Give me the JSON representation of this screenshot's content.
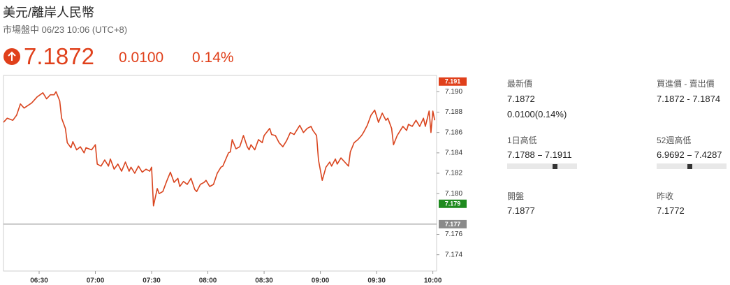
{
  "header": {
    "title": "美元/離岸人民幣",
    "status": "市場盤中 06/23 10:06 (UTC+8)",
    "price": "7.1872",
    "change": "0.0100",
    "change_pct": "0.14%"
  },
  "chart_data": {
    "type": "line",
    "color": "#d9441e",
    "x": [
      "06:11",
      "06:13",
      "06:16",
      "06:18",
      "06:20",
      "06:22",
      "06:26",
      "06:29",
      "06:32",
      "06:34",
      "06:36",
      "06:38",
      "06:39",
      "06:41",
      "06:42",
      "06:44",
      "06:45",
      "06:47",
      "06:48",
      "06:50",
      "06:52",
      "06:54",
      "06:55",
      "06:58",
      "07:00",
      "07:01",
      "07:03",
      "07:05",
      "07:07",
      "07:08",
      "07:10",
      "07:12",
      "07:14",
      "07:16",
      "07:18",
      "07:19",
      "07:21",
      "07:23",
      "07:25",
      "07:27",
      "07:29",
      "07:30",
      "07:31",
      "07:33",
      "07:34",
      "07:36",
      "07:38",
      "07:40",
      "07:42",
      "07:44",
      "07:45",
      "07:47",
      "07:49",
      "07:51",
      "07:53",
      "07:54",
      "07:56",
      "07:58",
      "07:59",
      "08:01",
      "08:03",
      "08:05",
      "08:07",
      "08:08",
      "08:11",
      "08:12",
      "08:13",
      "08:15",
      "08:17",
      "08:19",
      "08:21",
      "08:22",
      "08:23",
      "08:25",
      "08:27",
      "08:29",
      "08:30",
      "08:33",
      "08:34",
      "08:36",
      "08:38",
      "08:40",
      "08:42",
      "08:44",
      "08:46",
      "08:48",
      "08:49",
      "08:51",
      "08:53",
      "08:55",
      "08:56",
      "08:58",
      "08:59",
      "09:01",
      "09:03",
      "09:05",
      "09:06",
      "09:08",
      "09:09",
      "09:11",
      "09:13",
      "09:15",
      "09:16",
      "09:18",
      "09:20",
      "09:22",
      "09:23",
      "09:25",
      "09:27",
      "09:29",
      "09:31",
      "09:33",
      "09:35",
      "09:36",
      "09:38",
      "09:39",
      "09:41",
      "09:42",
      "09:44",
      "09:46",
      "09:47",
      "09:49",
      "09:51",
      "09:53",
      "09:55",
      "09:56",
      "09:58",
      "09:59",
      "10:00",
      "10:01"
    ],
    "values": [
      7.187,
      7.1874,
      7.1872,
      7.1877,
      7.1888,
      7.1884,
      7.1889,
      7.1895,
      7.1899,
      7.1893,
      7.1897,
      7.1897,
      7.19,
      7.1891,
      7.1874,
      7.1864,
      7.185,
      7.1845,
      7.1851,
      7.1843,
      7.1846,
      7.184,
      7.1845,
      7.1843,
      7.1848,
      7.1829,
      7.1827,
      7.1833,
      7.1827,
      7.1834,
      7.1824,
      7.1829,
      7.1822,
      7.1831,
      7.1822,
      7.1826,
      7.182,
      7.1827,
      7.1821,
      7.1824,
      7.1822,
      7.1826,
      7.1788,
      7.1805,
      7.18,
      7.1802,
      7.1812,
      7.1821,
      7.1811,
      7.1815,
      7.1807,
      7.1812,
      7.1809,
      7.1815,
      7.1804,
      7.1802,
      7.1809,
      7.1811,
      7.1813,
      7.1807,
      7.1809,
      7.182,
      7.1826,
      7.1827,
      7.184,
      7.1841,
      7.1853,
      7.1844,
      7.1846,
      7.1857,
      7.1846,
      7.1843,
      7.1848,
      7.1843,
      7.1853,
      7.185,
      7.1857,
      7.1864,
      7.1858,
      7.1857,
      7.185,
      7.1846,
      7.1852,
      7.186,
      7.1858,
      7.1864,
      7.1867,
      7.186,
      7.1864,
      7.1866,
      7.1862,
      7.1857,
      7.1833,
      7.1813,
      7.1826,
      7.1831,
      7.1827,
      7.1834,
      7.1829,
      7.1835,
      7.1831,
      7.1827,
      7.1841,
      7.185,
      7.1853,
      7.1857,
      7.186,
      7.1867,
      7.1877,
      7.1882,
      7.187,
      7.1879,
      7.1872,
      7.1874,
      7.1864,
      7.1848,
      7.1857,
      7.186,
      7.1866,
      7.1862,
      7.1868,
      7.1866,
      7.1872,
      7.1866,
      7.1874,
      7.1866,
      7.1881,
      7.186,
      7.1881,
      7.1872
    ],
    "xlim": [
      "06:11",
      "10:02"
    ],
    "xticks": [
      "06:30",
      "07:00",
      "07:30",
      "08:00",
      "08:30",
      "09:00",
      "09:30",
      "10:00"
    ],
    "ylim": [
      7.1724,
      7.1916
    ],
    "yticks": [
      7.174,
      7.176,
      {
        "value": 7.18,
        "label": "7.180"
      },
      7.182,
      7.184,
      7.186,
      7.188,
      {
        "value": 7.19,
        "label": "7.190"
      }
    ],
    "markers": [
      {
        "value": 7.191,
        "color": "#e0401b"
      },
      {
        "value": 7.179,
        "color": "#1e8a1e"
      },
      {
        "value": 7.177,
        "color": "#8a8a8a",
        "line": true
      }
    ]
  },
  "quote": {
    "last": {
      "label": "最新價",
      "value": "7.1872",
      "change": "0.0100(0.14%)"
    },
    "bid_ask": {
      "label": "買進價 - 賣出價",
      "value": "7.1872 - 7.1874"
    },
    "day_range": {
      "label": "1日高低",
      "low": "7.1788",
      "high": "7.1911"
    },
    "week52_range": {
      "label": "52週高低",
      "low": "6.9692",
      "high": "7.4287"
    },
    "open": {
      "label": "開盤",
      "value": "7.1877"
    },
    "prev_close": {
      "label": "昨收",
      "value": "7.1772"
    }
  }
}
